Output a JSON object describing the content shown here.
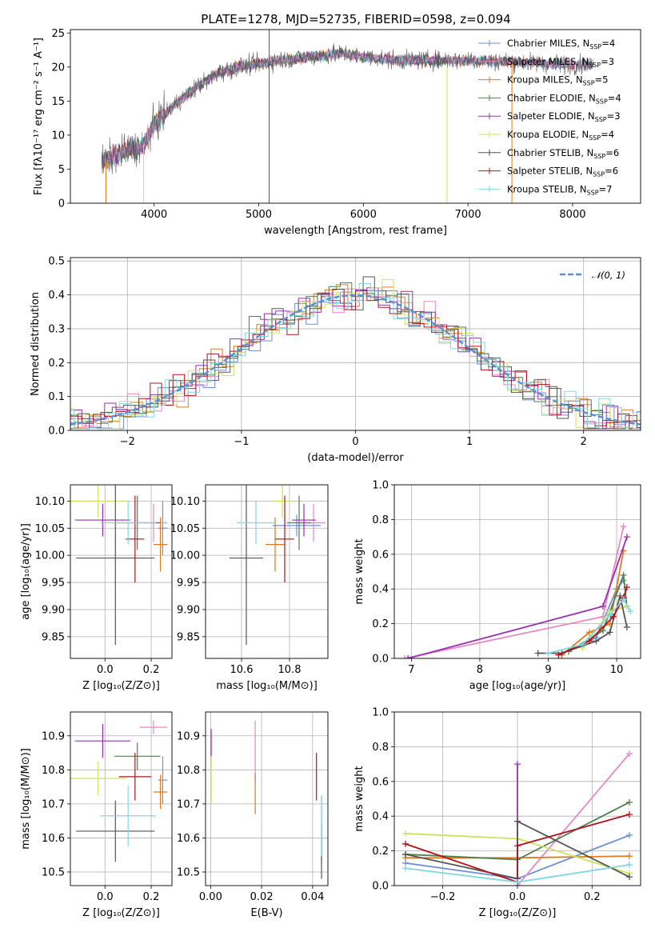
{
  "figure_title": "PLATE=1278, MJD=52735, FIBERID=0598, z=0.094",
  "colors": {
    "Chabrier MILES": "#6f8fd8",
    "Salpeter MILES": "#e589c4",
    "Kroupa MILES": "#e07a1f",
    "Chabrier ELODIE": "#4f7f4f",
    "Salpeter ELODIE": "#9a2fb0",
    "Kroupa ELODIE": "#cfe060",
    "Chabrier STELIB": "#555555",
    "Salpeter STELIB": "#b0141e",
    "Kroupa STELIB": "#80d8e0",
    "normal_curve": "#5a8fd8",
    "grid": "#b0b0b0"
  },
  "chart_data": [
    {
      "id": "spectrum",
      "type": "line",
      "title": "PLATE=1278, MJD=52735, FIBERID=0598, z=0.094",
      "xlabel": "wavelength [Angstrom, rest frame]",
      "ylabel": "Flux [fλ10⁻¹⁷ erg cm⁻² s⁻¹ A⁻¹]",
      "xlim": [
        3200,
        8650
      ],
      "ylim": [
        0,
        25.5
      ],
      "xticks": [
        "4000",
        "5000",
        "6000",
        "7000",
        "8000"
      ],
      "yticks": [
        "0",
        "5",
        "10",
        "15",
        "20",
        "25"
      ],
      "legend_placement": "upper-right",
      "legend": [
        {
          "name": "Chabrier MILES",
          "text": "Chabrier MILES, N",
          "sub": "SSP",
          "post": "=4"
        },
        {
          "name": "Salpeter MILES",
          "text": "Salpeter MILES, N",
          "sub": "SSP",
          "post": "=3"
        },
        {
          "name": "Kroupa MILES",
          "text": "Kroupa MILES, N",
          "sub": "SSP",
          "post": "=5"
        },
        {
          "name": "Chabrier ELODIE",
          "text": "Chabrier ELODIE, N",
          "sub": "SSP",
          "post": "=4"
        },
        {
          "name": "Salpeter ELODIE",
          "text": "Salpeter ELODIE, N",
          "sub": "SSP",
          "post": "=3"
        },
        {
          "name": "Kroupa ELODIE",
          "text": "Kroupa ELODIE, N",
          "sub": "SSP",
          "post": "=4"
        },
        {
          "name": "Chabrier STELIB",
          "text": "Chabrier STELIB, N",
          "sub": "SSP",
          "post": "=6"
        },
        {
          "name": "Salpeter STELIB",
          "text": "Salpeter STELIB, N",
          "sub": "SSP",
          "post": "=6"
        },
        {
          "name": "Kroupa STELIB",
          "text": "Kroupa STELIB, N",
          "sub": "SSP",
          "post": "=7"
        }
      ],
      "continuum": {
        "x": [
          3500,
          3700,
          3900,
          4000,
          4200,
          4400,
          4600,
          4800,
          5000,
          5200,
          5500,
          5800,
          6000,
          6300,
          6600,
          7000,
          7400,
          7800,
          8200
        ],
        "y": [
          6.0,
          7.5,
          8.5,
          11.5,
          14.5,
          17.0,
          19.0,
          20.0,
          20.5,
          21.0,
          21.5,
          22.0,
          21.5,
          21.0,
          21.0,
          21.0,
          20.8,
          20.5,
          20.3
        ]
      },
      "spikes": [
        {
          "x": 5100,
          "y0": 0,
          "y1": 25.5,
          "series": "Chabrier STELIB"
        },
        {
          "x": 6800,
          "y0": 0,
          "y1": 20.0,
          "series": "Kroupa ELODIE"
        },
        {
          "x": 7420,
          "y0": 0,
          "y1": 21.0,
          "series": "Kroupa MILES"
        },
        {
          "x": 3900,
          "y0": 0,
          "y1": 8.5,
          "series": "Kroupa ELODIE"
        },
        {
          "x": 3540,
          "y0": 0,
          "y1": 6.0,
          "series": "Kroupa MILES"
        }
      ]
    },
    {
      "id": "residuals",
      "type": "step",
      "xlabel": "(data-model)/error",
      "ylabel": "Normed distribution",
      "xlim": [
        -2.5,
        2.5
      ],
      "ylim": [
        0,
        0.51
      ],
      "xticks": [
        "−2",
        "−1",
        "0",
        "1",
        "2"
      ],
      "yticks": [
        "0.0",
        "0.1",
        "0.2",
        "0.3",
        "0.4",
        "0.5"
      ],
      "legend_placement": "upper-right",
      "legend": [
        {
          "text": "𝒩(0, 1)"
        }
      ]
    },
    {
      "id": "age_vs_Z",
      "type": "errorbar",
      "xlabel": "Z [log₁₀(Z/Z⊙)]",
      "ylabel": "age  [log₁₀(age/yr)]",
      "xlim": [
        -0.15,
        0.29
      ],
      "ylim": [
        9.81,
        10.13
      ],
      "xticks": [
        "0.0",
        "0.2"
      ],
      "yticks": [
        "9.85",
        "9.90",
        "9.95",
        "10.00",
        "10.05",
        "10.10"
      ],
      "points": [
        {
          "series": "Chabrier MILES",
          "x": 0.25,
          "xerr": 0.02,
          "y": 10.05,
          "yerr": 0.05
        },
        {
          "series": "Salpeter MILES",
          "x": 0.21,
          "xerr": 0.06,
          "y": 10.06,
          "yerr": 0.035
        },
        {
          "series": "Kroupa MILES",
          "x": 0.24,
          "xerr": 0.03,
          "y": 10.02,
          "yerr": 0.05
        },
        {
          "series": "Chabrier ELODIE",
          "x": 0.14,
          "xerr": 0.1,
          "y": 10.06,
          "yerr": 0.05
        },
        {
          "series": "Salpeter ELODIE",
          "x": -0.01,
          "xerr": 0.12,
          "y": 10.065,
          "yerr": 0.03
        },
        {
          "series": "Kroupa ELODIE",
          "x": -0.03,
          "xerr": 0.12,
          "y": 10.1,
          "yerr": 0.03
        },
        {
          "series": "Chabrier STELIB",
          "x": 0.045,
          "xerr": 0.17,
          "y": 9.995,
          "yerr": 0.16
        },
        {
          "series": "Salpeter STELIB",
          "x": 0.13,
          "xerr": 0.04,
          "y": 10.03,
          "yerr": 0.08
        },
        {
          "series": "Kroupa STELIB",
          "x": 0.1,
          "xerr": 0.12,
          "y": 10.06,
          "yerr": 0.04
        }
      ]
    },
    {
      "id": "age_vs_mass",
      "type": "errorbar",
      "xlabel": "mass [log₁₀(M/M⊙)]",
      "ylabel": "",
      "xlim": [
        10.45,
        10.96
      ],
      "ylim": [
        9.81,
        10.13
      ],
      "xticks": [
        "10.6",
        "10.8"
      ],
      "yticks": [
        "9.85",
        "9.90",
        "9.95",
        "10.00",
        "10.05",
        "10.10"
      ],
      "points": [
        {
          "series": "Chabrier MILES",
          "x": 10.83,
          "xerr": 0.1,
          "y": 10.055,
          "yerr": 0.02
        },
        {
          "series": "Salpeter MILES",
          "x": 10.9,
          "xerr": 0.05,
          "y": 10.06,
          "yerr": 0.035
        },
        {
          "series": "Kroupa MILES",
          "x": 10.74,
          "xerr": 0.04,
          "y": 10.02,
          "yerr": 0.05
        },
        {
          "series": "Chabrier ELODIE",
          "x": 10.84,
          "xerr": 0.05,
          "y": 10.06,
          "yerr": 0.05
        },
        {
          "series": "Salpeter ELODIE",
          "x": 10.86,
          "xerr": 0.05,
          "y": 10.065,
          "yerr": 0.03
        },
        {
          "series": "Kroupa ELODIE",
          "x": 10.77,
          "xerr": 0.04,
          "y": 10.1,
          "yerr": 0.03
        },
        {
          "series": "Chabrier STELIB",
          "x": 10.62,
          "xerr": 0.07,
          "y": 9.995,
          "yerr": 0.16
        },
        {
          "series": "Salpeter STELIB",
          "x": 10.78,
          "xerr": 0.04,
          "y": 10.03,
          "yerr": 0.08
        },
        {
          "series": "Kroupa STELIB",
          "x": 10.66,
          "xerr": 0.08,
          "y": 10.06,
          "yerr": 0.04
        }
      ]
    },
    {
      "id": "weights_vs_age",
      "type": "line",
      "xlabel": "age  [log₁₀(age/yr)]",
      "ylabel": "mass weight",
      "xlim": [
        6.75,
        10.35
      ],
      "ylim": [
        0,
        1
      ],
      "xticks": [
        "7",
        "8",
        "9",
        "10"
      ],
      "yticks": [
        "0.0",
        "0.2",
        "0.4",
        "0.6",
        "0.8",
        "1.0"
      ],
      "series": [
        {
          "name": "Chabrier MILES",
          "x": [
            9.2,
            9.7,
            10.0,
            10.1
          ],
          "y": [
            0.03,
            0.12,
            0.4,
            0.45
          ]
        },
        {
          "name": "Salpeter MILES",
          "x": [
            6.9,
            9.8,
            10.1
          ],
          "y": [
            0.0,
            0.24,
            0.76
          ]
        },
        {
          "name": "Kroupa MILES",
          "x": [
            9.2,
            9.6,
            9.9,
            10.1
          ],
          "y": [
            0.02,
            0.15,
            0.2,
            0.62
          ]
        },
        {
          "name": "Chabrier ELODIE",
          "x": [
            9.3,
            9.8,
            10.1,
            10.15
          ],
          "y": [
            0.04,
            0.16,
            0.48,
            0.3
          ]
        },
        {
          "name": "Salpeter ELODIE",
          "x": [
            6.95,
            9.8,
            10.15
          ],
          "y": [
            0.0,
            0.3,
            0.7
          ]
        },
        {
          "name": "Kroupa ELODIE",
          "x": [
            9.5,
            9.9,
            10.15
          ],
          "y": [
            0.06,
            0.27,
            0.3
          ]
        },
        {
          "name": "Chabrier STELIB",
          "x": [
            8.85,
            9.2,
            9.7,
            9.9,
            10.05,
            10.15
          ],
          "y": [
            0.03,
            0.03,
            0.1,
            0.15,
            0.36,
            0.18
          ]
        },
        {
          "name": "Salpeter STELIB",
          "x": [
            9.15,
            9.6,
            9.95,
            10.1,
            10.15
          ],
          "y": [
            0.02,
            0.1,
            0.24,
            0.35,
            0.41
          ]
        },
        {
          "name": "Kroupa STELIB",
          "x": [
            9.0,
            9.5,
            9.9,
            10.1,
            10.2
          ],
          "y": [
            0.03,
            0.08,
            0.25,
            0.34,
            0.27
          ]
        }
      ]
    },
    {
      "id": "mass_vs_Z",
      "type": "errorbar",
      "xlabel": "Z [log₁₀(Z/Z⊙)]",
      "ylabel": "mass [log₁₀(M/M⊙)]",
      "xlim": [
        -0.15,
        0.29
      ],
      "ylim": [
        10.46,
        10.97
      ],
      "xticks": [
        "0.0",
        "0.2"
      ],
      "yticks": [
        "10.5",
        "10.6",
        "10.7",
        "10.8",
        "10.9"
      ],
      "points": [
        {
          "series": "Chabrier MILES",
          "x": 0.25,
          "xerr": 0.02,
          "y": 10.77,
          "yerr": 0.07
        },
        {
          "series": "Salpeter MILES",
          "x": 0.21,
          "xerr": 0.06,
          "y": 10.925,
          "yerr": 0.02
        },
        {
          "series": "Kroupa MILES",
          "x": 0.24,
          "xerr": 0.03,
          "y": 10.735,
          "yerr": 0.05
        },
        {
          "series": "Chabrier ELODIE",
          "x": 0.14,
          "xerr": 0.1,
          "y": 10.84,
          "yerr": 0.04
        },
        {
          "series": "Salpeter ELODIE",
          "x": -0.01,
          "xerr": 0.12,
          "y": 10.885,
          "yerr": 0.05
        },
        {
          "series": "Kroupa ELODIE",
          "x": -0.03,
          "xerr": 0.12,
          "y": 10.775,
          "yerr": 0.05
        },
        {
          "series": "Chabrier STELIB",
          "x": 0.045,
          "xerr": 0.17,
          "y": 10.62,
          "yerr": 0.09
        },
        {
          "series": "Salpeter STELIB",
          "x": 0.13,
          "xerr": 0.07,
          "y": 10.78,
          "yerr": 0.07
        },
        {
          "series": "Kroupa STELIB",
          "x": 0.1,
          "xerr": 0.12,
          "y": 10.665,
          "yerr": 0.09
        }
      ]
    },
    {
      "id": "mass_vs_ebv",
      "type": "errorbar",
      "xlabel": "E(B-V)",
      "ylabel": "",
      "xlim": [
        -0.002,
        0.046
      ],
      "ylim": [
        10.46,
        10.97
      ],
      "xticks": [
        "0.00",
        "0.02",
        "0.04"
      ],
      "yticks": [
        "10.5",
        "10.6",
        "10.7",
        "10.8",
        "10.9"
      ],
      "points": [
        {
          "series": "Chabrier MILES",
          "x": 0.0435,
          "xerr": 0.0,
          "y": 10.62,
          "yerr": 0.1
        },
        {
          "series": "Salpeter MILES",
          "x": 0.0175,
          "xerr": 0.0,
          "y": 10.855,
          "yerr": 0.09
        },
        {
          "series": "Kroupa MILES",
          "x": 0.0175,
          "xerr": 0.0,
          "y": 10.73,
          "yerr": 0.06
        },
        {
          "series": "Chabrier ELODIE",
          "x": 0.0435,
          "xerr": 0.0,
          "y": 10.59,
          "yerr": 0.05
        },
        {
          "series": "Salpeter ELODIE",
          "x": 0.0002,
          "xerr": 0.0,
          "y": 10.88,
          "yerr": 0.04
        },
        {
          "series": "Kroupa ELODIE",
          "x": 0.0002,
          "xerr": 0.0,
          "y": 10.77,
          "yerr": 0.07
        },
        {
          "series": "Chabrier STELIB",
          "x": 0.0435,
          "xerr": 0.0,
          "y": 10.515,
          "yerr": 0.035
        },
        {
          "series": "Salpeter STELIB",
          "x": 0.0415,
          "xerr": 0.0,
          "y": 10.78,
          "yerr": 0.07
        },
        {
          "series": "Kroupa STELIB",
          "x": 0.0435,
          "xerr": 0.0,
          "y": 10.635,
          "yerr": 0.09
        }
      ]
    },
    {
      "id": "weights_vs_Z",
      "type": "line",
      "xlabel": "Z [log₁₀(Z/Z⊙)]",
      "ylabel": "mass weight",
      "xlim": [
        -0.33,
        0.33
      ],
      "ylim": [
        0,
        1
      ],
      "xticks": [
        "−0.2",
        "0.0",
        "0.2"
      ],
      "yticks": [
        "0.0",
        "0.2",
        "0.4",
        "0.6",
        "0.8",
        "1.0"
      ],
      "series": [
        {
          "name": "Chabrier MILES",
          "x": [
            -0.3,
            0.0,
            0.3
          ],
          "y": [
            0.13,
            0.04,
            0.29
          ]
        },
        {
          "name": "Salpeter MILES",
          "x": [
            0.0,
            0.3
          ],
          "y": [
            0.0,
            0.76
          ]
        },
        {
          "name": "Kroupa MILES",
          "x": [
            -0.3,
            0.0,
            0.3
          ],
          "y": [
            0.16,
            0.16,
            0.17
          ]
        },
        {
          "name": "Chabrier ELODIE",
          "x": [
            -0.3,
            0.0,
            0.3
          ],
          "y": [
            0.18,
            0.15,
            0.48
          ]
        },
        {
          "name": "Salpeter ELODIE",
          "x": [
            0.0,
            0.0
          ],
          "y": [
            0.0,
            0.7
          ]
        },
        {
          "name": "Kroupa ELODIE",
          "x": [
            -0.3,
            0.0,
            0.3
          ],
          "y": [
            0.3,
            0.27,
            0.07
          ]
        },
        {
          "name": "Chabrier STELIB",
          "x": [
            -0.3,
            0.0,
            0.0,
            0.3
          ],
          "y": [
            0.18,
            0.04,
            0.37,
            0.05
          ]
        },
        {
          "name": "Salpeter STELIB",
          "x": [
            -0.3,
            0.0,
            0.0,
            0.3
          ],
          "y": [
            0.24,
            0.02,
            0.23,
            0.41
          ]
        },
        {
          "name": "Kroupa STELIB",
          "x": [
            -0.3,
            0.0,
            0.3
          ],
          "y": [
            0.1,
            0.02,
            0.12
          ]
        }
      ]
    }
  ]
}
